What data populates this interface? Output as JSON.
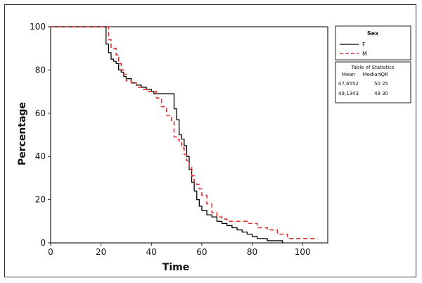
{
  "chart_data": {
    "type": "line",
    "xlabel": "Time",
    "ylabel": "Percentage",
    "xlim": [
      0,
      110
    ],
    "ylim": [
      0,
      100
    ],
    "xticks": [
      "0",
      "20",
      "40",
      "60",
      "80",
      "100"
    ],
    "yticks": [
      "0",
      "20",
      "40",
      "60",
      "80",
      "100"
    ],
    "legend_title": "Sex",
    "legend_placement": "right",
    "series": [
      {
        "name": "F",
        "color": "#000000",
        "style": "solid",
        "x": [
          0,
          21,
          22,
          23,
          24,
          25,
          26,
          27,
          28,
          29,
          30,
          32,
          34,
          36,
          38,
          40,
          41,
          42,
          43,
          44,
          45,
          46,
          47,
          48,
          49,
          50,
          51,
          52,
          53,
          54,
          55,
          56,
          57,
          58,
          59,
          60,
          62,
          64,
          66,
          68,
          70,
          72,
          74,
          76,
          78,
          80,
          82,
          86,
          92
        ],
        "y": [
          100,
          100,
          92,
          88,
          85,
          84,
          83,
          80,
          79,
          77,
          76,
          74,
          73,
          72,
          71,
          70,
          69,
          69,
          69,
          69,
          69,
          69,
          69,
          69,
          62,
          57,
          50,
          48,
          45,
          40,
          34,
          28,
          24,
          20,
          17,
          15,
          13,
          12,
          10,
          9,
          8,
          7,
          6,
          5,
          4,
          3,
          2,
          1,
          0
        ]
      },
      {
        "name": "M",
        "color": "#e03030",
        "style": "dashed",
        "x": [
          0,
          22,
          23,
          24,
          25,
          26,
          27,
          28,
          29,
          30,
          32,
          34,
          36,
          38,
          40,
          42,
          44,
          46,
          48,
          49,
          50,
          51,
          52,
          53,
          54,
          55,
          56,
          57,
          58,
          59,
          60,
          62,
          64,
          66,
          68,
          70,
          72,
          75,
          78,
          82,
          86,
          90,
          94,
          102,
          106
        ],
        "y": [
          100,
          100,
          94,
          90,
          90,
          87,
          83,
          80,
          78,
          75,
          74,
          72,
          71,
          70,
          70,
          67,
          63,
          59,
          56,
          49,
          48,
          47,
          44,
          41,
          38,
          35,
          31,
          28,
          27,
          25,
          22,
          18,
          14,
          12,
          11,
          10,
          10,
          10,
          9,
          7,
          6,
          4,
          2,
          2,
          2
        ]
      }
    ],
    "stats_table": {
      "title": "Table of Statistics",
      "headers": [
        "Mean",
        "Median",
        "IQR"
      ],
      "rows": [
        [
          "47,6552",
          "50",
          "25"
        ],
        [
          "49,1343",
          "49",
          "30"
        ]
      ]
    }
  }
}
